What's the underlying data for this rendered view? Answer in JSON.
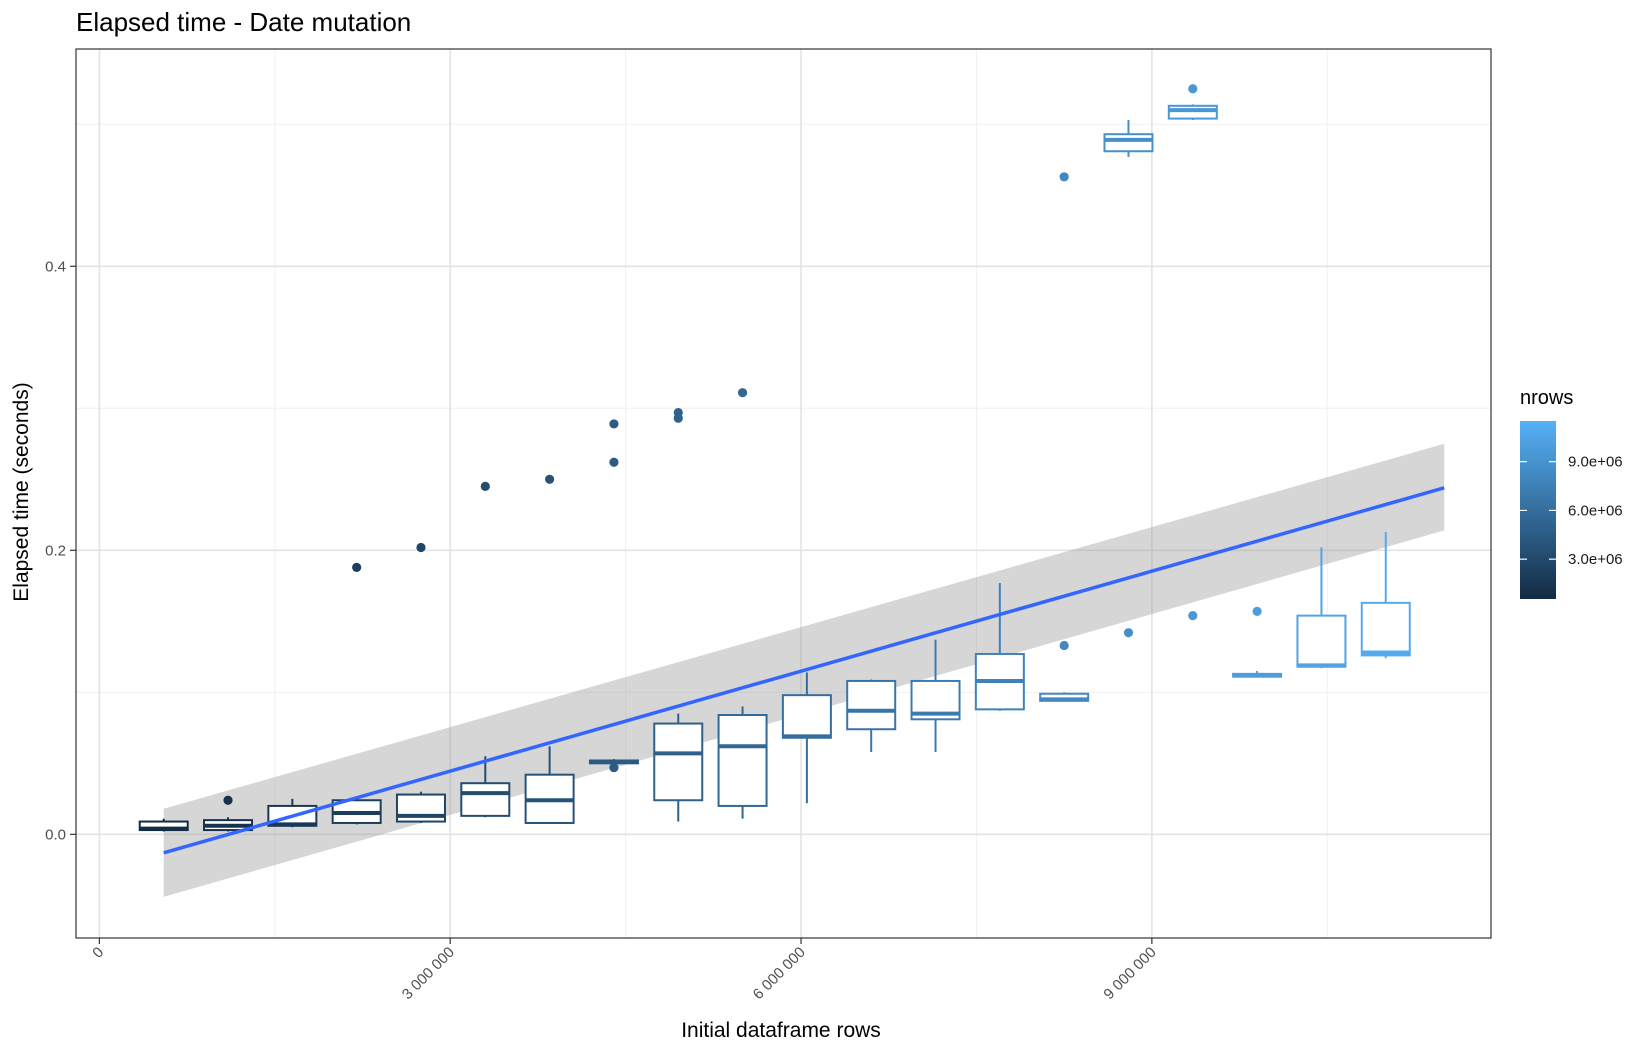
{
  "chart_data": {
    "type": "box",
    "title": "Elapsed time - Date mutation",
    "xlabel": "Initial dataframe rows",
    "ylabel": "Elapsed time (seconds)",
    "xlim": [
      -200000,
      11900000
    ],
    "ylim": [
      -0.073,
      0.553
    ],
    "x_ticks": [
      {
        "value": 0,
        "label": "0"
      },
      {
        "value": 3000000,
        "label": "3 000 000"
      },
      {
        "value": 6000000,
        "label": "6 000 000"
      },
      {
        "value": 9000000,
        "label": "9 000 000"
      }
    ],
    "y_ticks": [
      {
        "value": 0.0,
        "label": "0.0"
      },
      {
        "value": 0.2,
        "label": "0.2"
      },
      {
        "value": 0.4,
        "label": "0.4"
      }
    ],
    "grid": true,
    "legend": {
      "title": "nrows",
      "position": "right",
      "type": "colorbar",
      "range": [
        550000,
        11500000
      ],
      "low_color": "#132B43",
      "high_color": "#56B1F7",
      "ticks": [
        {
          "value": 3000000,
          "label": "3.0e+06"
        },
        {
          "value": 6000000,
          "label": "6.0e+06"
        },
        {
          "value": 9000000,
          "label": "9.0e+06"
        }
      ]
    },
    "boxes": [
      {
        "x": 550000,
        "min": 0.002,
        "q1": 0.003,
        "median": 0.004,
        "q3": 0.009,
        "max": 0.011,
        "outliers": []
      },
      {
        "x": 1100000,
        "min": 0.002,
        "q1": 0.003,
        "median": 0.006,
        "q3": 0.01,
        "max": 0.012,
        "outliers": [
          0.024
        ]
      },
      {
        "x": 1650000,
        "min": 0.005,
        "q1": 0.006,
        "median": 0.007,
        "q3": 0.02,
        "max": 0.025,
        "outliers": []
      },
      {
        "x": 2200000,
        "min": 0.007,
        "q1": 0.008,
        "median": 0.015,
        "q3": 0.024,
        "max": 0.026,
        "outliers": [
          0.188
        ]
      },
      {
        "x": 2750000,
        "min": 0.008,
        "q1": 0.009,
        "median": 0.013,
        "q3": 0.028,
        "max": 0.03,
        "outliers": [
          0.202
        ]
      },
      {
        "x": 3300000,
        "min": 0.012,
        "q1": 0.013,
        "median": 0.029,
        "q3": 0.036,
        "max": 0.055,
        "outliers": [
          0.245
        ]
      },
      {
        "x": 3850000,
        "min": 0.008,
        "q1": 0.008,
        "median": 0.024,
        "q3": 0.042,
        "max": 0.062,
        "outliers": [
          0.25
        ]
      },
      {
        "x": 4400000,
        "min": 0.049,
        "q1": 0.05,
        "median": 0.051,
        "q3": 0.052,
        "max": 0.053,
        "outliers": [
          0.047,
          0.262,
          0.289
        ]
      },
      {
        "x": 4950000,
        "min": 0.009,
        "q1": 0.024,
        "median": 0.057,
        "q3": 0.078,
        "max": 0.085,
        "outliers": [
          0.293,
          0.297
        ]
      },
      {
        "x": 5500000,
        "min": 0.011,
        "q1": 0.02,
        "median": 0.062,
        "q3": 0.084,
        "max": 0.09,
        "outliers": [
          0.311
        ]
      },
      {
        "x": 6050000,
        "min": 0.022,
        "q1": 0.068,
        "median": 0.069,
        "q3": 0.098,
        "max": 0.114,
        "outliers": []
      },
      {
        "x": 6600000,
        "min": 0.058,
        "q1": 0.074,
        "median": 0.087,
        "q3": 0.108,
        "max": 0.109,
        "outliers": []
      },
      {
        "x": 7150000,
        "min": 0.058,
        "q1": 0.081,
        "median": 0.085,
        "q3": 0.108,
        "max": 0.137,
        "outliers": []
      },
      {
        "x": 7700000,
        "min": 0.087,
        "q1": 0.088,
        "median": 0.108,
        "q3": 0.127,
        "max": 0.177,
        "outliers": []
      },
      {
        "x": 8250000,
        "min": 0.094,
        "q1": 0.094,
        "median": 0.095,
        "q3": 0.099,
        "max": 0.1,
        "outliers": [
          0.133,
          0.463
        ]
      },
      {
        "x": 8800000,
        "min": 0.477,
        "q1": 0.481,
        "median": 0.489,
        "q3": 0.493,
        "max": 0.503,
        "outliers": [
          0.142
        ]
      },
      {
        "x": 9350000,
        "min": 0.503,
        "q1": 0.504,
        "median": 0.51,
        "q3": 0.513,
        "max": 0.514,
        "outliers": [
          0.154,
          0.525
        ]
      },
      {
        "x": 9900000,
        "min": 0.111,
        "q1": 0.111,
        "median": 0.112,
        "q3": 0.113,
        "max": 0.115,
        "outliers": [
          0.157
        ]
      },
      {
        "x": 10450000,
        "min": 0.117,
        "q1": 0.118,
        "median": 0.119,
        "q3": 0.154,
        "max": 0.202,
        "outliers": []
      },
      {
        "x": 11000000,
        "min": 0.124,
        "q1": 0.126,
        "median": 0.128,
        "q3": 0.163,
        "max": 0.213,
        "outliers": []
      }
    ],
    "trend": {
      "type": "linear fit with confidence band",
      "color": "#3366FF",
      "band_color": "#999999",
      "x": [
        550000,
        11500000
      ],
      "y": [
        -0.013,
        0.244
      ],
      "band_lower": [
        -0.044,
        0.214
      ],
      "band_upper": [
        0.018,
        0.275
      ]
    }
  }
}
